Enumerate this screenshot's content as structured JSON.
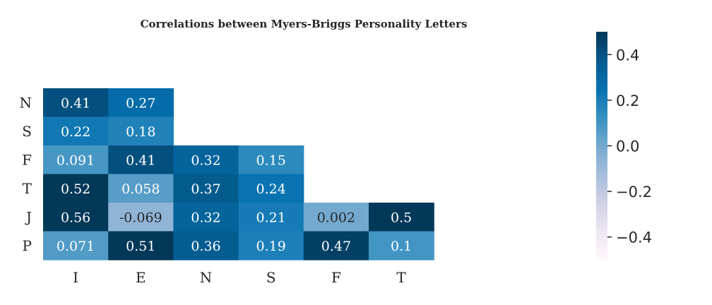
{
  "chart_data": {
    "type": "heatmap",
    "title": "Correlations between Myers-Briggs Personality Letters",
    "x_categories": [
      "I",
      "E",
      "N",
      "S",
      "F",
      "T"
    ],
    "y_categories": [
      "N",
      "S",
      "F",
      "T",
      "J",
      "P"
    ],
    "cells": [
      {
        "row": "N",
        "col": "I",
        "value": 0.41,
        "label": "0.41"
      },
      {
        "row": "N",
        "col": "E",
        "value": 0.27,
        "label": "0.27"
      },
      {
        "row": "S",
        "col": "I",
        "value": 0.22,
        "label": "0.22"
      },
      {
        "row": "S",
        "col": "E",
        "value": 0.18,
        "label": "0.18"
      },
      {
        "row": "F",
        "col": "I",
        "value": 0.091,
        "label": "0.091"
      },
      {
        "row": "F",
        "col": "E",
        "value": 0.41,
        "label": "0.41"
      },
      {
        "row": "F",
        "col": "N",
        "value": 0.32,
        "label": "0.32"
      },
      {
        "row": "F",
        "col": "S",
        "value": 0.15,
        "label": "0.15"
      },
      {
        "row": "T",
        "col": "I",
        "value": 0.52,
        "label": "0.52"
      },
      {
        "row": "T",
        "col": "E",
        "value": 0.058,
        "label": "0.058"
      },
      {
        "row": "T",
        "col": "N",
        "value": 0.37,
        "label": "0.37"
      },
      {
        "row": "T",
        "col": "S",
        "value": 0.24,
        "label": "0.24"
      },
      {
        "row": "J",
        "col": "I",
        "value": 0.56,
        "label": "0.56"
      },
      {
        "row": "J",
        "col": "E",
        "value": -0.069,
        "label": "-0.069"
      },
      {
        "row": "J",
        "col": "N",
        "value": 0.32,
        "label": "0.32"
      },
      {
        "row": "J",
        "col": "S",
        "value": 0.21,
        "label": "0.21"
      },
      {
        "row": "J",
        "col": "F",
        "value": 0.002,
        "label": "0.002"
      },
      {
        "row": "J",
        "col": "T",
        "value": 0.5,
        "label": "0.5"
      },
      {
        "row": "P",
        "col": "I",
        "value": 0.071,
        "label": "0.071"
      },
      {
        "row": "P",
        "col": "E",
        "value": 0.51,
        "label": "0.51"
      },
      {
        "row": "P",
        "col": "N",
        "value": 0.36,
        "label": "0.36"
      },
      {
        "row": "P",
        "col": "S",
        "value": 0.19,
        "label": "0.19"
      },
      {
        "row": "P",
        "col": "F",
        "value": 0.47,
        "label": "0.47"
      },
      {
        "row": "P",
        "col": "T",
        "value": 0.1,
        "label": "0.1"
      }
    ],
    "colorbar": {
      "vmin": -0.5,
      "vmax": 0.5,
      "ticks": [
        0.4,
        0.2,
        0.0,
        -0.2,
        -0.4
      ],
      "tick_labels": [
        "0.4",
        "0.2",
        "0.0",
        "−0.2",
        "−0.4"
      ],
      "placement": "right"
    },
    "colormap": "PuBu",
    "colormap_stops": [
      "#fff7fb",
      "#ece7f2",
      "#d0d1e6",
      "#a6bddb",
      "#74a9cf",
      "#3690c0",
      "#0570b0",
      "#045a8d",
      "#023858"
    ],
    "grid": false
  }
}
